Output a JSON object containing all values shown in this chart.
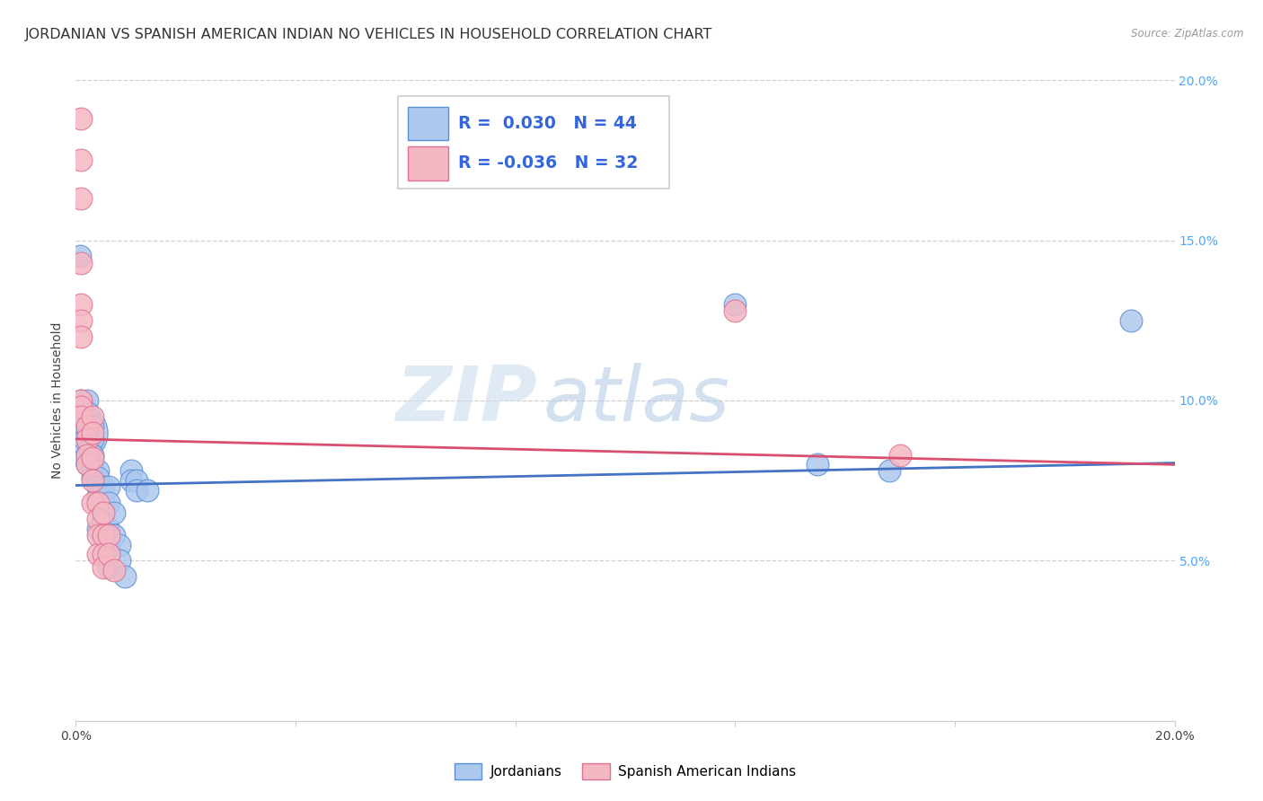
{
  "title": "JORDANIAN VS SPANISH AMERICAN INDIAN NO VEHICLES IN HOUSEHOLD CORRELATION CHART",
  "source": "Source: ZipAtlas.com",
  "ylabel": "No Vehicles in Household",
  "xlim": [
    0.0,
    0.2
  ],
  "ylim": [
    0.0,
    0.2
  ],
  "blue_R": 0.03,
  "blue_N": 44,
  "pink_R": -0.036,
  "pink_N": 32,
  "blue_color": "#adc8ed",
  "pink_color": "#f4b8c4",
  "blue_edge_color": "#5b8dd9",
  "pink_edge_color": "#e07090",
  "blue_line_color": "#4472c4",
  "pink_line_color": "#d94f70",
  "watermark_zip_color": "#ccddef",
  "watermark_atlas_color": "#b0c8e4",
  "background_color": "#ffffff",
  "grid_color": "#d0d0d0",
  "title_fontsize": 11.5,
  "tick_fontsize": 10,
  "right_tick_color": "#4da6ff",
  "blue_line_x": [
    0.0,
    0.2
  ],
  "blue_line_y": [
    0.0735,
    0.0805
  ],
  "pink_line_x": [
    0.0,
    0.2
  ],
  "pink_line_y": [
    0.088,
    0.08
  ],
  "blue_points": [
    [
      0.0008,
      0.145
    ],
    [
      0.001,
      0.1
    ],
    [
      0.001,
      0.095
    ],
    [
      0.0013,
      0.092
    ],
    [
      0.0015,
      0.088
    ],
    [
      0.0015,
      0.082
    ],
    [
      0.002,
      0.1
    ],
    [
      0.002,
      0.08
    ],
    [
      0.0022,
      0.096
    ],
    [
      0.0022,
      0.09
    ],
    [
      0.0025,
      0.085
    ],
    [
      0.003,
      0.092
    ],
    [
      0.003,
      0.088
    ],
    [
      0.003,
      0.083
    ],
    [
      0.003,
      0.08
    ],
    [
      0.003,
      0.078
    ],
    [
      0.003,
      0.076
    ],
    [
      0.004,
      0.078
    ],
    [
      0.004,
      0.076
    ],
    [
      0.004,
      0.073
    ],
    [
      0.004,
      0.07
    ],
    [
      0.004,
      0.06
    ],
    [
      0.005,
      0.073
    ],
    [
      0.005,
      0.068
    ],
    [
      0.005,
      0.063
    ],
    [
      0.006,
      0.073
    ],
    [
      0.006,
      0.068
    ],
    [
      0.006,
      0.06
    ],
    [
      0.006,
      0.055
    ],
    [
      0.006,
      0.048
    ],
    [
      0.007,
      0.065
    ],
    [
      0.007,
      0.058
    ],
    [
      0.008,
      0.055
    ],
    [
      0.008,
      0.05
    ],
    [
      0.009,
      0.045
    ],
    [
      0.01,
      0.078
    ],
    [
      0.01,
      0.075
    ],
    [
      0.011,
      0.075
    ],
    [
      0.011,
      0.072
    ],
    [
      0.013,
      0.072
    ],
    [
      0.12,
      0.13
    ],
    [
      0.135,
      0.08
    ],
    [
      0.148,
      0.078
    ],
    [
      0.192,
      0.125
    ]
  ],
  "blue_big_point": [
    0.0005,
    0.09
  ],
  "blue_big_size": 2200,
  "pink_points": [
    [
      0.001,
      0.188
    ],
    [
      0.001,
      0.175
    ],
    [
      0.001,
      0.163
    ],
    [
      0.001,
      0.143
    ],
    [
      0.001,
      0.13
    ],
    [
      0.001,
      0.125
    ],
    [
      0.001,
      0.12
    ],
    [
      0.001,
      0.1
    ],
    [
      0.001,
      0.098
    ],
    [
      0.001,
      0.095
    ],
    [
      0.002,
      0.092
    ],
    [
      0.002,
      0.088
    ],
    [
      0.002,
      0.083
    ],
    [
      0.002,
      0.08
    ],
    [
      0.003,
      0.095
    ],
    [
      0.003,
      0.09
    ],
    [
      0.003,
      0.082
    ],
    [
      0.003,
      0.075
    ],
    [
      0.003,
      0.068
    ],
    [
      0.004,
      0.068
    ],
    [
      0.004,
      0.063
    ],
    [
      0.004,
      0.058
    ],
    [
      0.004,
      0.052
    ],
    [
      0.005,
      0.065
    ],
    [
      0.005,
      0.058
    ],
    [
      0.005,
      0.052
    ],
    [
      0.005,
      0.048
    ],
    [
      0.006,
      0.058
    ],
    [
      0.006,
      0.052
    ],
    [
      0.007,
      0.047
    ],
    [
      0.12,
      0.128
    ],
    [
      0.15,
      0.083
    ]
  ]
}
